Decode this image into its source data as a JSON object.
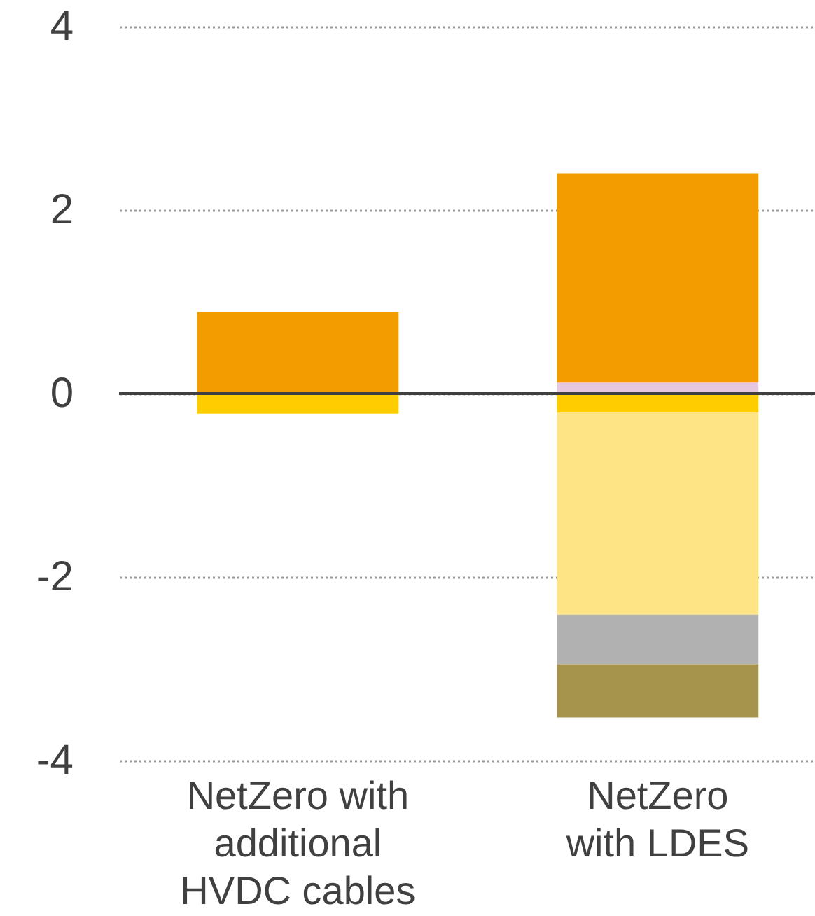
{
  "chart_data": {
    "type": "bar",
    "stacked": true,
    "categories": [
      "NetZero with additional HVDC cables",
      "NetZero with LDES"
    ],
    "series": [
      {
        "color": "#e5c8e0",
        "values": [
          null,
          0.12
        ]
      },
      {
        "color": "#f39c00",
        "values": [
          0.89,
          2.28
        ]
      },
      {
        "color": "#ffcc00",
        "values": [
          -0.22,
          -0.21
        ]
      },
      {
        "color": "#fee485",
        "values": [
          null,
          -2.2
        ]
      },
      {
        "color": "#b1b1b1",
        "values": [
          null,
          -0.54
        ]
      },
      {
        "color": "#a6944c",
        "values": [
          null,
          -0.58
        ]
      }
    ],
    "ylim": [
      -4,
      4
    ],
    "yticks": [
      -4,
      -2,
      0,
      2,
      4
    ],
    "grid": "y",
    "ref_lines": [
      {
        "axis": "y",
        "value": 0,
        "color": "#404040"
      }
    ]
  }
}
